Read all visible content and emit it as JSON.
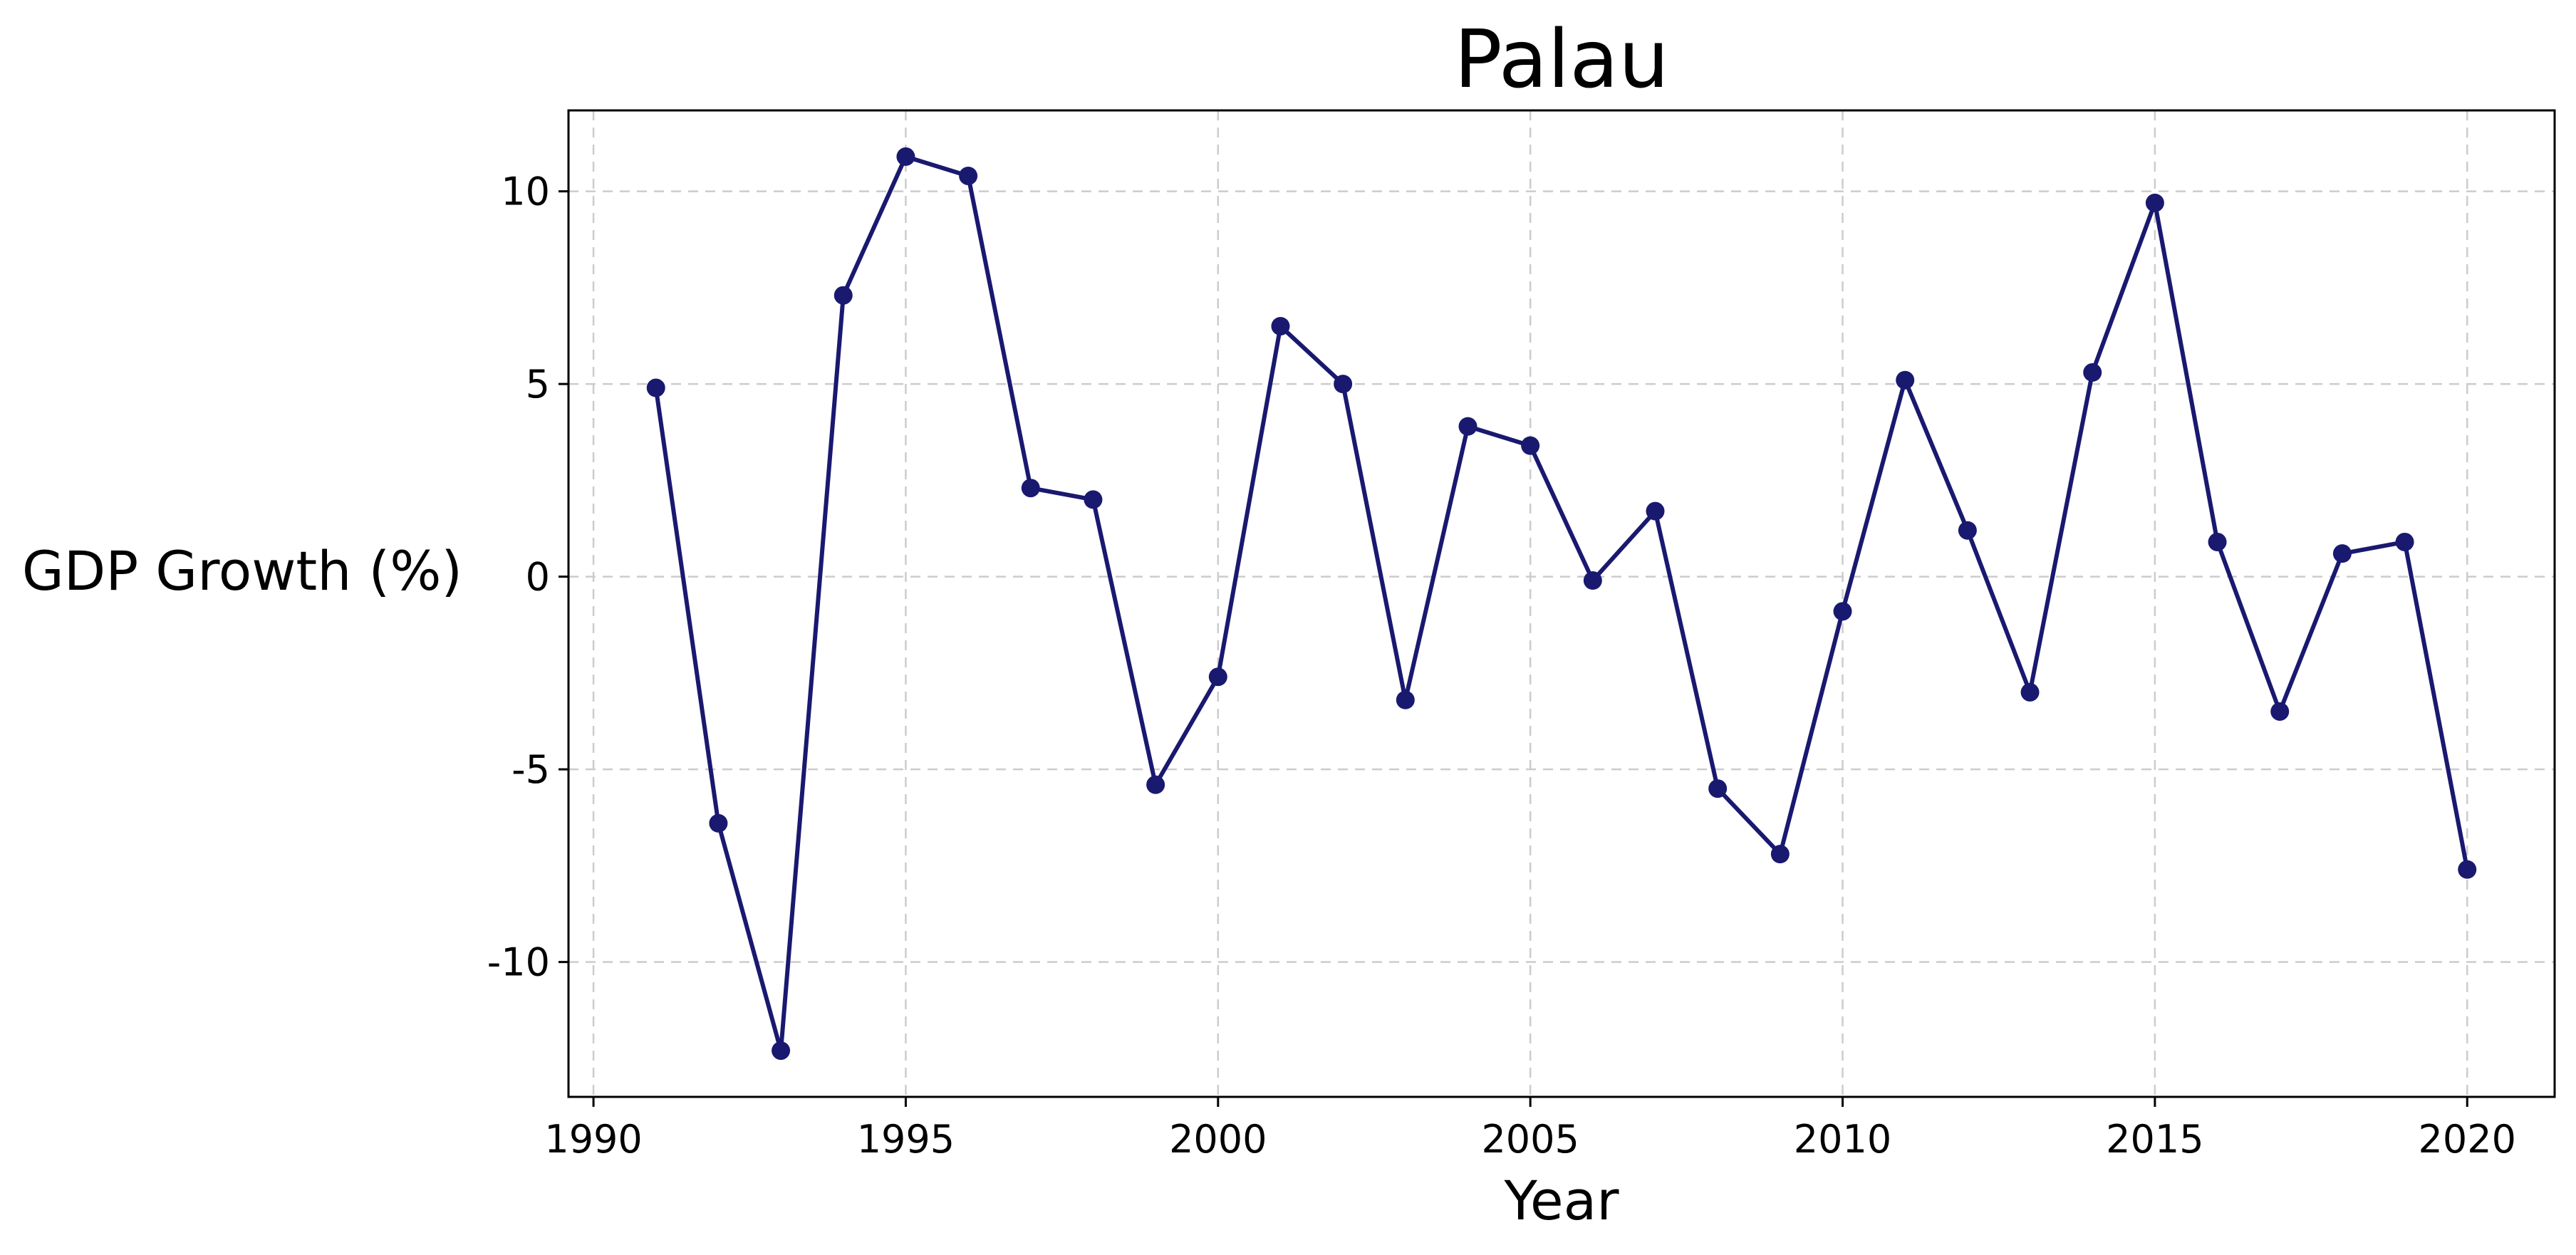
{
  "chart_data": {
    "type": "line",
    "title": "Palau",
    "xlabel": "Year",
    "ylabel": "GDP Growth (%)",
    "xlim": [
      1989.6,
      2021.4
    ],
    "ylim": [
      -13.5,
      12.1
    ],
    "xticks": [
      1990,
      1995,
      2000,
      2005,
      2010,
      2015,
      2020
    ],
    "yticks": [
      -10,
      -5,
      0,
      5,
      10
    ],
    "grid": true,
    "series": [
      {
        "color": "#191970",
        "x": [
          1991,
          1992,
          1993,
          1994,
          1995,
          1996,
          1997,
          1998,
          1999,
          2000,
          2001,
          2002,
          2003,
          2004,
          2005,
          2006,
          2007,
          2008,
          2009,
          2010,
          2011,
          2012,
          2013,
          2014,
          2015,
          2016,
          2017,
          2018,
          2019,
          2020
        ],
        "y": [
          4.9,
          -6.4,
          -12.3,
          7.3,
          10.9,
          10.4,
          2.3,
          2.0,
          -5.4,
          -2.6,
          6.5,
          5.0,
          -3.2,
          3.9,
          3.4,
          -0.1,
          1.7,
          -5.5,
          -7.2,
          -0.9,
          5.1,
          1.2,
          -3.0,
          5.3,
          9.7,
          0.9,
          -3.5,
          0.6,
          0.9,
          -7.6
        ]
      }
    ]
  }
}
